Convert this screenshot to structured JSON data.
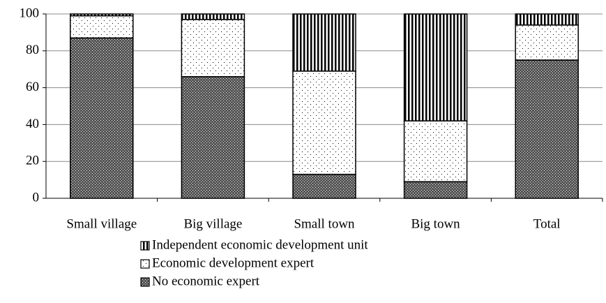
{
  "chart_data": {
    "type": "stacked_bar",
    "categories": [
      "Small village",
      "Big village",
      "Small town",
      "Big town",
      "Total"
    ],
    "series": [
      {
        "name": "No economic expert",
        "color": "#555555",
        "pattern": "crosshatch",
        "values": [
          87,
          66,
          13,
          9,
          75
        ]
      },
      {
        "name": "Economic development expert",
        "color": "#ffffff",
        "pattern": "dots",
        "values": [
          12,
          31,
          56,
          33,
          19
        ]
      },
      {
        "name": "Independent economic development unit",
        "color": "#000000",
        "pattern": "vertical-stripes",
        "values": [
          1,
          3,
          31,
          58,
          6
        ]
      }
    ],
    "ylim": [
      0,
      100
    ],
    "yticks": [
      0,
      20,
      40,
      60,
      80,
      100
    ],
    "grid": true
  }
}
